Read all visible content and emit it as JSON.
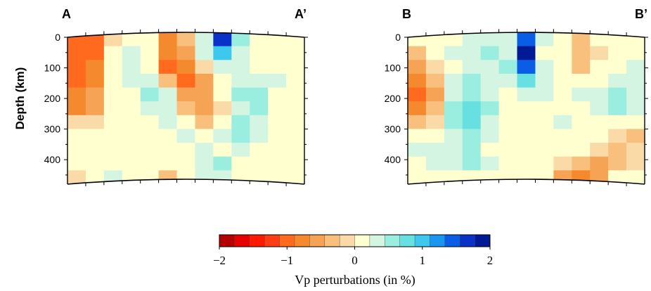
{
  "chart_data": {
    "type": "heatmap",
    "ylabel": "Depth (km)",
    "y_ticks": [
      0,
      100,
      200,
      300,
      400
    ],
    "ylim": [
      0,
      480
    ],
    "grid": false,
    "panels": [
      {
        "start_label": "A",
        "end_label": "A’",
        "cols": 13,
        "rows": 11,
        "row_depths_km": [
          0,
          40,
          80,
          120,
          160,
          200,
          240,
          280,
          320,
          360,
          400
        ],
        "values": [
          [
            -1.0,
            -0.9,
            -0.1,
            0.2,
            0.1,
            -0.7,
            -0.4,
            0.4,
            1.6,
            0.5,
            0.1,
            0.1,
            0.2
          ],
          [
            -1.1,
            -0.9,
            0.1,
            0.3,
            0.2,
            -0.8,
            -0.6,
            0.3,
            1.0,
            0.4,
            0.2,
            0.1,
            0.1
          ],
          [
            -1.0,
            -0.8,
            0.0,
            0.4,
            0.2,
            -0.9,
            -0.8,
            -0.2,
            0.4,
            0.4,
            0.1,
            0.0,
            0.0
          ],
          [
            -0.9,
            -0.7,
            0.0,
            0.4,
            0.3,
            -0.3,
            -0.9,
            -0.6,
            0.2,
            0.4,
            0.3,
            0.3,
            0.2
          ],
          [
            -0.8,
            -0.6,
            0.0,
            0.2,
            0.5,
            0.3,
            -0.5,
            -0.6,
            0.0,
            0.5,
            0.5,
            0.1,
            0.0
          ],
          [
            -0.7,
            -0.5,
            0.0,
            0.0,
            0.3,
            0.4,
            -0.4,
            -0.5,
            -0.1,
            0.4,
            0.5,
            0.0,
            0.0
          ],
          [
            -0.2,
            -0.1,
            0.0,
            0.0,
            0.1,
            0.3,
            0.1,
            -0.3,
            0.0,
            0.5,
            0.4,
            0.0,
            0.1
          ],
          [
            0.0,
            0.0,
            0.0,
            0.0,
            0.0,
            0.1,
            0.3,
            0.2,
            0.3,
            0.6,
            0.3,
            0.0,
            0.0
          ],
          [
            0.1,
            0.0,
            0.0,
            0.1,
            0.0,
            0.0,
            0.1,
            0.3,
            0.2,
            0.3,
            0.0,
            0.0,
            0.0
          ],
          [
            0.0,
            0.0,
            0.0,
            0.0,
            0.1,
            0.2,
            0.2,
            0.4,
            0.5,
            0.2,
            0.0,
            0.1,
            0.0
          ],
          [
            -0.2,
            0.0,
            0.3,
            0.0,
            0.0,
            -0.3,
            0.1,
            0.4,
            0.4,
            0.0,
            0.0,
            0.0,
            0.0
          ]
        ]
      },
      {
        "start_label": "B",
        "end_label": "B’",
        "cols": 13,
        "rows": 11,
        "row_depths_km": [
          0,
          40,
          80,
          120,
          160,
          200,
          240,
          280,
          320,
          360,
          400
        ],
        "values": [
          [
            0.0,
            0.1,
            0.2,
            0.3,
            0.3,
            0.3,
            1.4,
            0.3,
            0.1,
            -0.3,
            0.0,
            0.0,
            0.1
          ],
          [
            -0.4,
            0.0,
            0.3,
            0.4,
            0.5,
            0.3,
            1.8,
            0.2,
            0.1,
            -0.4,
            -0.2,
            0.1,
            0.2
          ],
          [
            -0.6,
            -0.2,
            0.2,
            0.3,
            0.4,
            0.6,
            1.4,
            0.4,
            0.0,
            -0.3,
            0.0,
            0.2,
            0.3
          ],
          [
            -0.7,
            -0.3,
            0.3,
            0.5,
            0.3,
            0.4,
            0.7,
            0.4,
            0.0,
            0.0,
            0.2,
            0.4,
            0.4
          ],
          [
            -0.9,
            -0.5,
            0.4,
            0.6,
            0.4,
            0.2,
            0.3,
            0.3,
            0.2,
            0.3,
            0.4,
            0.5,
            0.4
          ],
          [
            -0.8,
            -0.4,
            0.5,
            0.7,
            0.5,
            0.1,
            0.0,
            0.0,
            0.2,
            0.2,
            0.3,
            0.5,
            0.4
          ],
          [
            -0.4,
            -0.1,
            0.5,
            0.7,
            0.4,
            0.1,
            0.0,
            0.1,
            0.3,
            0.1,
            0.0,
            0.2,
            0.1
          ],
          [
            0.0,
            0.2,
            0.4,
            0.6,
            0.3,
            0.0,
            0.0,
            0.2,
            0.0,
            0.0,
            0.0,
            -0.2,
            -0.3
          ],
          [
            0.3,
            0.3,
            0.4,
            0.5,
            0.2,
            0.0,
            0.0,
            0.0,
            0.0,
            0.0,
            -0.1,
            -0.3,
            -0.2
          ],
          [
            0.2,
            0.3,
            0.4,
            0.5,
            0.3,
            0.1,
            0.0,
            0.0,
            -0.2,
            -0.4,
            -0.5,
            -0.3,
            -0.1
          ],
          [
            0.1,
            0.1,
            0.2,
            0.2,
            0.2,
            0.0,
            0.0,
            0.0,
            -0.5,
            -0.7,
            -0.6,
            0.0,
            0.0
          ]
        ]
      }
    ],
    "colorbar": {
      "label": "Vp perturbations (in %)",
      "min": -2,
      "max": 2,
      "tick_values": [
        -2,
        -1,
        0,
        1,
        2
      ],
      "tick_labels": [
        "−2",
        "−1",
        "0",
        "1",
        "2"
      ],
      "colors": [
        "#b30000",
        "#e60000",
        "#ff1a00",
        "#ff3d14",
        "#ff6a1f",
        "#f5892e",
        "#f7a355",
        "#f8bf7d",
        "#fadba8",
        "#ffffd0",
        "#d4f5e2",
        "#99eee0",
        "#66e0e0",
        "#3dc8f0",
        "#1a96f0",
        "#0a5ee6",
        "#0a32c8",
        "#001a96"
      ]
    }
  }
}
